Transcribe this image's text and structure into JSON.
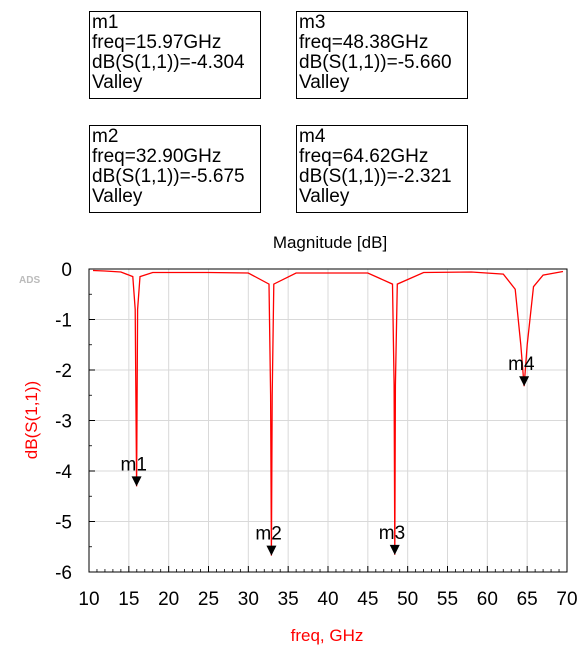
{
  "markers": [
    {
      "id": "m1",
      "freq_text": "freq=15.97GHz",
      "value_text": "dB(S(1,1))=-4.304",
      "kind": "Valley"
    },
    {
      "id": "m2",
      "freq_text": "freq=32.90GHz",
      "value_text": "dB(S(1,1))=-5.675",
      "kind": "Valley"
    },
    {
      "id": "m3",
      "freq_text": "freq=48.38GHz",
      "value_text": "dB(S(1,1))=-5.660",
      "kind": "Valley"
    },
    {
      "id": "m4",
      "freq_text": "freq=64.62GHz",
      "value_text": "dB(S(1,1))=-2.321",
      "kind": "Valley"
    }
  ],
  "chart_data": {
    "type": "line",
    "title": "Magnitude [dB]",
    "watermark": "ADS",
    "xlabel": "freq, GHz",
    "ylabel": "dB(S(1,1))",
    "xlim": [
      10,
      70
    ],
    "ylim": [
      -6,
      0
    ],
    "xticks": [
      10,
      15,
      20,
      25,
      30,
      35,
      40,
      45,
      50,
      55,
      60,
      65,
      70
    ],
    "yticks": [
      0,
      -1,
      -2,
      -3,
      -4,
      -5,
      -6
    ],
    "grid": true,
    "line_color": "#ff0000",
    "label_color": "#ff0000",
    "series": [
      {
        "x": [
          10.5,
          12,
          14,
          15.5,
          15.8,
          15.97,
          16.1,
          16.4,
          18,
          25,
          30,
          32.6,
          32.8,
          32.9,
          33.0,
          33.2,
          36,
          40,
          45,
          48.1,
          48.3,
          48.38,
          48.46,
          48.7,
          52,
          58,
          62,
          63.5,
          64.2,
          64.62,
          65.0,
          65.8,
          67,
          69.5
        ],
        "y": [
          -0.03,
          -0.04,
          -0.06,
          -0.15,
          -0.8,
          -4.304,
          -0.8,
          -0.15,
          -0.07,
          -0.07,
          -0.08,
          -0.3,
          -2.5,
          -5.675,
          -2.5,
          -0.3,
          -0.08,
          -0.08,
          -0.08,
          -0.3,
          -2.3,
          -5.66,
          -2.3,
          -0.3,
          -0.07,
          -0.06,
          -0.1,
          -0.4,
          -1.5,
          -2.321,
          -1.5,
          -0.35,
          -0.12,
          -0.05
        ]
      }
    ],
    "marker_points": [
      {
        "name": "m1",
        "x": 15.97,
        "y": -4.304
      },
      {
        "name": "m2",
        "x": 32.9,
        "y": -5.675
      },
      {
        "name": "m3",
        "x": 48.38,
        "y": -5.66
      },
      {
        "name": "m4",
        "x": 64.62,
        "y": -2.321
      }
    ]
  }
}
